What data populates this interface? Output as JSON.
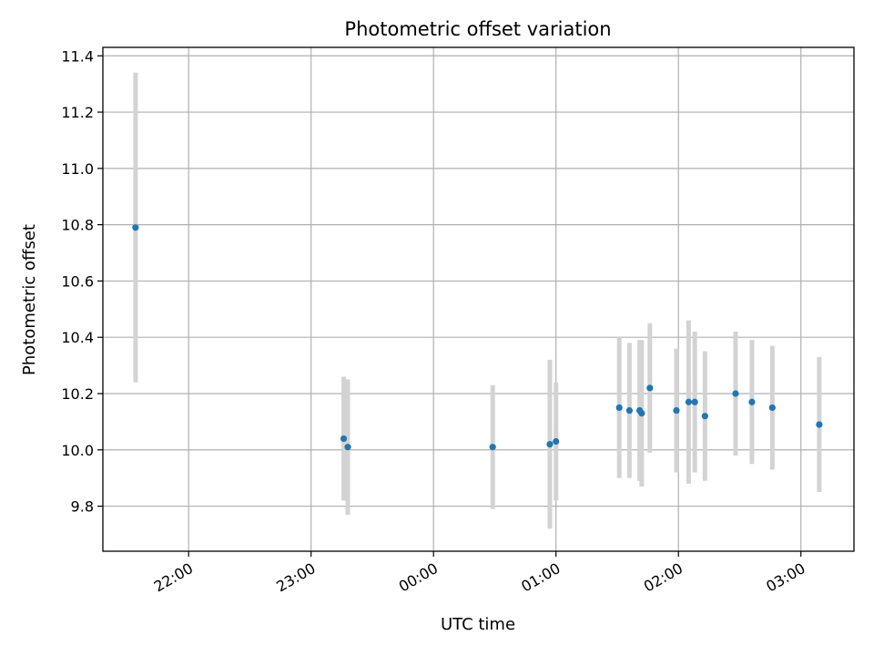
{
  "chart_data": {
    "type": "scatter",
    "title": "Photometric offset variation",
    "xlabel": "UTC time",
    "ylabel": "Photometric offset",
    "xlim": [
      "21:18",
      "03:26"
    ],
    "ylim": [
      9.64,
      11.43
    ],
    "xticks": [
      "22:00",
      "23:00",
      "00:00",
      "01:00",
      "02:00",
      "03:00"
    ],
    "yticks": [
      "9.8",
      "10.0",
      "10.2",
      "10.4",
      "10.6",
      "10.8",
      "11.0",
      "11.2",
      "11.4"
    ],
    "grid": true,
    "marker_color": "#1f77b4",
    "errorbar_color": "#d3d3d3",
    "points": [
      {
        "x": "21:34",
        "y": 10.79,
        "yerr": 0.55
      },
      {
        "x": "23:16",
        "y": 10.04,
        "yerr": 0.22
      },
      {
        "x": "23:18",
        "y": 10.01,
        "yerr": 0.24
      },
      {
        "x": "00:29",
        "y": 10.01,
        "yerr": 0.22
      },
      {
        "x": "00:57",
        "y": 10.02,
        "yerr": 0.3
      },
      {
        "x": "01:00",
        "y": 10.03,
        "yerr": 0.21
      },
      {
        "x": "01:31",
        "y": 10.15,
        "yerr": 0.25
      },
      {
        "x": "01:36",
        "y": 10.14,
        "yerr": 0.24
      },
      {
        "x": "01:41",
        "y": 10.14,
        "yerr": 0.25
      },
      {
        "x": "01:42",
        "y": 10.13,
        "yerr": 0.26
      },
      {
        "x": "01:46",
        "y": 10.22,
        "yerr": 0.23
      },
      {
        "x": "01:59",
        "y": 10.14,
        "yerr": 0.22
      },
      {
        "x": "02:05",
        "y": 10.17,
        "yerr": 0.29
      },
      {
        "x": "02:08",
        "y": 10.17,
        "yerr": 0.25
      },
      {
        "x": "02:13",
        "y": 10.12,
        "yerr": 0.23
      },
      {
        "x": "02:28",
        "y": 10.2,
        "yerr": 0.22
      },
      {
        "x": "02:36",
        "y": 10.17,
        "yerr": 0.22
      },
      {
        "x": "02:46",
        "y": 10.15,
        "yerr": 0.22
      },
      {
        "x": "03:09",
        "y": 10.09,
        "yerr": 0.24
      }
    ]
  }
}
